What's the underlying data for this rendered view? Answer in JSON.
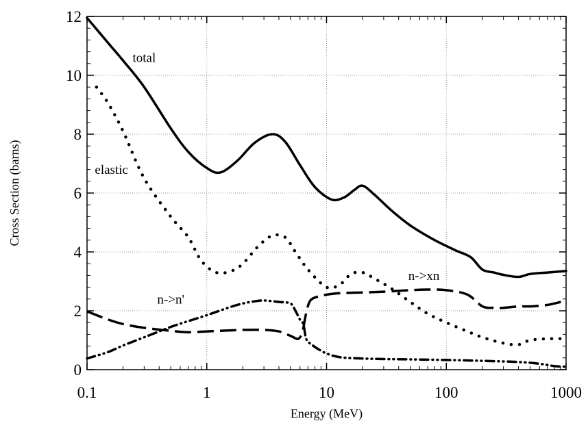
{
  "chart_data": {
    "type": "line",
    "xlabel": "Energy (MeV)",
    "ylabel": "Cross Section (barns)",
    "xscale": "log",
    "xlim": [
      0.1,
      1000
    ],
    "ylim": [
      0,
      12
    ],
    "grid": true,
    "x_ticks": [
      0.1,
      1,
      10,
      100,
      1000
    ],
    "x_tick_labels": [
      "0.1",
      "1",
      "10",
      "100",
      "1000"
    ],
    "y_ticks": [
      0,
      2,
      4,
      6,
      8,
      10,
      12
    ],
    "y_tick_labels": [
      "0",
      "2",
      "4",
      "6",
      "8",
      "10",
      "12"
    ],
    "series": [
      {
        "name": "total",
        "style": "solid",
        "color": "#000000",
        "x": [
          0.1,
          0.15,
          0.2,
          0.3,
          0.5,
          0.7,
          1.0,
          1.3,
          1.8,
          2.5,
          3.5,
          4.5,
          6.0,
          8.0,
          11.0,
          14.0,
          17.0,
          20.0,
          25.0,
          35.0,
          50.0,
          80.0,
          120.0,
          160.0,
          200.0,
          250.0,
          300.0,
          400.0,
          500.0,
          700.0,
          1000.0
        ],
        "y": [
          11.95,
          11.1,
          10.5,
          9.6,
          8.2,
          7.4,
          6.85,
          6.7,
          7.1,
          7.7,
          8.0,
          7.75,
          6.95,
          6.2,
          5.78,
          5.85,
          6.1,
          6.25,
          5.95,
          5.4,
          4.9,
          4.4,
          4.05,
          3.82,
          3.4,
          3.3,
          3.22,
          3.15,
          3.25,
          3.3,
          3.35
        ]
      },
      {
        "name": "elastic",
        "style": "dotted",
        "color": "#000000",
        "x": [
          0.12,
          0.15,
          0.2,
          0.3,
          0.5,
          0.7,
          0.9,
          1.2,
          1.6,
          2.0,
          2.7,
          3.5,
          4.5,
          5.5,
          7.0,
          10.0,
          13.0,
          16.0,
          20.0,
          25.0,
          35.0,
          50.0,
          70.0,
          100.0,
          150.0,
          200.0,
          300.0,
          400.0,
          500.0,
          700.0,
          1000.0
        ],
        "y": [
          9.6,
          9.05,
          8.1,
          6.5,
          5.2,
          4.5,
          3.7,
          3.3,
          3.35,
          3.6,
          4.2,
          4.55,
          4.5,
          4.0,
          3.4,
          2.8,
          2.9,
          3.25,
          3.3,
          3.1,
          2.75,
          2.3,
          1.9,
          1.6,
          1.3,
          1.1,
          0.9,
          0.85,
          1.0,
          1.05,
          1.05
        ]
      },
      {
        "name": "n->n'",
        "style": "dash-dot-dot",
        "color": "#000000",
        "x": [
          0.1,
          0.15,
          0.2,
          0.3,
          0.5,
          0.7,
          1.0,
          1.5,
          2.0,
          2.5,
          3.0,
          4.0,
          5.0,
          5.5,
          6.0,
          6.4,
          6.7,
          7.0,
          7.5,
          8.5,
          10.0,
          13.0,
          20.0,
          30.0,
          50.0,
          100.0,
          200.0,
          400.0,
          600.0,
          800.0,
          1000.0
        ],
        "y": [
          0.38,
          0.6,
          0.82,
          1.1,
          1.45,
          1.65,
          1.85,
          2.1,
          2.25,
          2.32,
          2.35,
          2.3,
          2.25,
          2.0,
          1.7,
          1.55,
          1.1,
          0.95,
          0.85,
          0.7,
          0.55,
          0.42,
          0.38,
          0.36,
          0.35,
          0.33,
          0.3,
          0.26,
          0.2,
          0.12,
          0.1
        ]
      },
      {
        "name": "n->xn",
        "style": "dashed",
        "color": "#000000",
        "x": [
          0.1,
          0.15,
          0.2,
          0.3,
          0.5,
          0.7,
          1.0,
          1.5,
          2.0,
          3.0,
          4.0,
          5.0,
          5.8,
          6.3,
          6.7,
          7.2,
          8.0,
          10.0,
          13.0,
          20.0,
          30.0,
          50.0,
          70.0,
          100.0,
          150.0,
          200.0,
          250.0,
          300.0,
          400.0,
          500.0,
          700.0,
          1000.0
        ],
        "y": [
          1.98,
          1.7,
          1.55,
          1.42,
          1.32,
          1.27,
          1.3,
          1.33,
          1.35,
          1.35,
          1.3,
          1.15,
          1.05,
          1.3,
          1.85,
          2.3,
          2.45,
          2.55,
          2.6,
          2.62,
          2.65,
          2.7,
          2.72,
          2.7,
          2.55,
          2.15,
          2.1,
          2.1,
          2.15,
          2.15,
          2.2,
          2.35
        ]
      }
    ],
    "annotations": [
      {
        "text": "total",
        "x": 0.3,
        "y": 10.45
      },
      {
        "text": "elastic",
        "x": 0.16,
        "y": 6.65
      },
      {
        "text": "n->n'",
        "x": 0.5,
        "y": 2.25
      },
      {
        "text": "n->xn",
        "x": 65,
        "y": 3.05
      }
    ]
  }
}
